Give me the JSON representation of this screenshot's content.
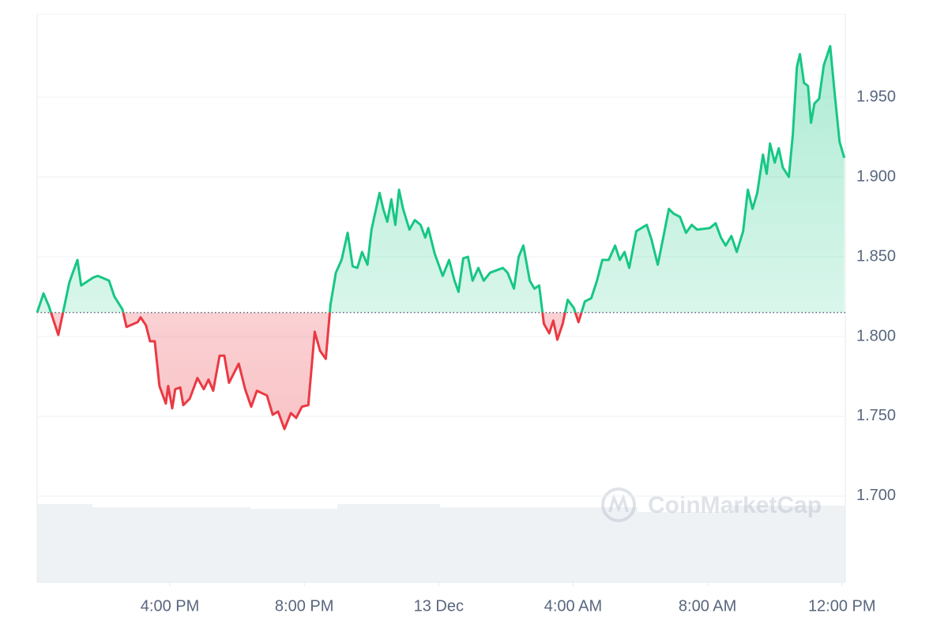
{
  "chart_data": {
    "type": "line",
    "watermark": "CoinMarketCap",
    "baseline": 1.815,
    "up_color": "#16c784",
    "down_color": "#ea3943",
    "xlim": [
      0.05,
      24.1
    ],
    "ylim": [
      1.646,
      2.002
    ],
    "xticks": [
      {
        "value": 4,
        "label": "4:00 PM"
      },
      {
        "value": 8,
        "label": "8:00 PM"
      },
      {
        "value": 12,
        "label": "13 Dec"
      },
      {
        "value": 16,
        "label": "4:00 AM"
      },
      {
        "value": 20,
        "label": "8:00 AM"
      },
      {
        "value": 24,
        "label": "12:00 PM"
      }
    ],
    "yticks": [
      {
        "value": 1.7,
        "label": "1.700"
      },
      {
        "value": 1.75,
        "label": "1.750"
      },
      {
        "value": 1.8,
        "label": "1.800"
      },
      {
        "value": 1.85,
        "label": "1.850"
      },
      {
        "value": 1.9,
        "label": "1.900"
      },
      {
        "value": 1.95,
        "label": "1.950"
      }
    ],
    "grid": true,
    "x": [
      0.05,
      0.24,
      0.4,
      0.68,
      0.87,
      1.01,
      1.25,
      1.36,
      1.72,
      1.86,
      2.19,
      2.35,
      2.59,
      2.71,
      3.04,
      3.13,
      3.29,
      3.41,
      3.55,
      3.69,
      3.88,
      3.95,
      4.07,
      4.16,
      4.31,
      4.4,
      4.59,
      4.82,
      5.01,
      5.15,
      5.29,
      5.48,
      5.62,
      5.76,
      6.05,
      6.24,
      6.42,
      6.59,
      6.89,
      7.06,
      7.22,
      7.41,
      7.6,
      7.76,
      7.93,
      8.12,
      8.31,
      8.47,
      8.64,
      8.78,
      8.94,
      9.11,
      9.29,
      9.44,
      9.58,
      9.72,
      9.88,
      10.0,
      10.24,
      10.35,
      10.47,
      10.59,
      10.71,
      10.82,
      10.94,
      11.13,
      11.29,
      11.46,
      11.6,
      11.69,
      11.88,
      12.12,
      12.31,
      12.47,
      12.59,
      12.73,
      12.87,
      13.01,
      13.18,
      13.34,
      13.53,
      13.91,
      14.05,
      14.24,
      14.38,
      14.52,
      14.71,
      14.85,
      14.99,
      15.13,
      15.29,
      15.41,
      15.53,
      15.69,
      15.84,
      16.02,
      16.16,
      16.35,
      16.54,
      16.71,
      16.87,
      17.06,
      17.25,
      17.39,
      17.53,
      17.67,
      17.88,
      18.19,
      18.33,
      18.52,
      18.71,
      18.85,
      18.99,
      19.18,
      19.36,
      19.53,
      19.69,
      20.07,
      20.24,
      20.4,
      20.54,
      20.71,
      20.87,
      21.06,
      21.2,
      21.34,
      21.48,
      21.65,
      21.76,
      21.86,
      22.0,
      22.12,
      22.24,
      22.42,
      22.54,
      22.66,
      22.75,
      22.87,
      22.99,
      23.08,
      23.18,
      23.32,
      23.46,
      23.65,
      23.79,
      23.93,
      24.07
    ],
    "values": [
      1.815,
      1.827,
      1.819,
      1.801,
      1.82,
      1.834,
      1.848,
      1.832,
      1.837,
      1.838,
      1.835,
      1.825,
      1.817,
      1.806,
      1.809,
      1.812,
      1.807,
      1.797,
      1.797,
      1.769,
      1.758,
      1.769,
      1.755,
      1.767,
      1.768,
      1.757,
      1.761,
      1.774,
      1.767,
      1.773,
      1.766,
      1.788,
      1.788,
      1.771,
      1.783,
      1.767,
      1.756,
      1.766,
      1.763,
      1.751,
      1.753,
      1.742,
      1.752,
      1.749,
      1.756,
      1.757,
      1.803,
      1.791,
      1.786,
      1.82,
      1.84,
      1.848,
      1.865,
      1.844,
      1.843,
      1.853,
      1.845,
      1.867,
      1.89,
      1.88,
      1.872,
      1.886,
      1.87,
      1.892,
      1.88,
      1.867,
      1.873,
      1.87,
      1.862,
      1.868,
      1.852,
      1.838,
      1.848,
      1.835,
      1.828,
      1.849,
      1.85,
      1.835,
      1.843,
      1.835,
      1.84,
      1.843,
      1.84,
      1.83,
      1.85,
      1.857,
      1.835,
      1.83,
      1.832,
      1.808,
      1.802,
      1.81,
      1.798,
      1.808,
      1.823,
      1.818,
      1.809,
      1.822,
      1.824,
      1.835,
      1.848,
      1.848,
      1.857,
      1.848,
      1.853,
      1.843,
      1.866,
      1.87,
      1.861,
      1.845,
      1.865,
      1.88,
      1.877,
      1.875,
      1.865,
      1.87,
      1.867,
      1.868,
      1.871,
      1.862,
      1.857,
      1.863,
      1.853,
      1.866,
      1.892,
      1.88,
      1.89,
      1.914,
      1.902,
      1.921,
      1.909,
      1.918,
      1.906,
      1.9,
      1.927,
      1.969,
      1.977,
      1.959,
      1.957,
      1.934,
      1.946,
      1.949,
      1.97,
      1.982,
      1.951,
      1.922,
      1.912
    ]
  }
}
